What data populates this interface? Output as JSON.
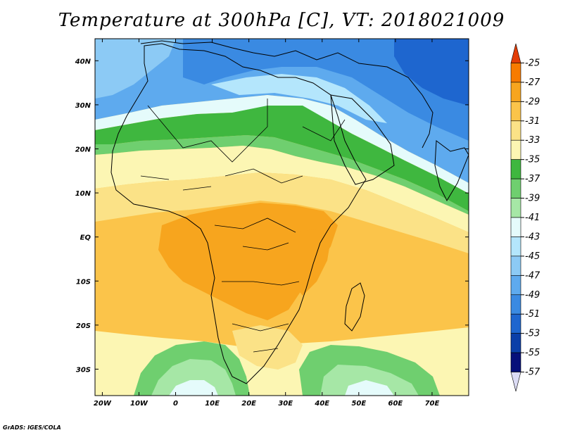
{
  "title": "Temperature at 300hPa [C], VT: 2018021009",
  "credit": "GrADS: IGES/COLA",
  "map": {
    "lon_range": [
      -22,
      80
    ],
    "lat_range": [
      -36,
      45
    ],
    "lon_ticks": [
      {
        "value": -20,
        "label": "20W"
      },
      {
        "value": -10,
        "label": "10W"
      },
      {
        "value": 0,
        "label": "0"
      },
      {
        "value": 10,
        "label": "10E"
      },
      {
        "value": 20,
        "label": "20E"
      },
      {
        "value": 30,
        "label": "30E"
      },
      {
        "value": 40,
        "label": "40E"
      },
      {
        "value": 50,
        "label": "50E"
      },
      {
        "value": 60,
        "label": "60E"
      },
      {
        "value": 70,
        "label": "70E"
      }
    ],
    "lat_ticks": [
      {
        "value": 40,
        "label": "40N"
      },
      {
        "value": 30,
        "label": "30N"
      },
      {
        "value": 20,
        "label": "20N"
      },
      {
        "value": 10,
        "label": "10N"
      },
      {
        "value": 0,
        "label": "EQ"
      },
      {
        "value": -10,
        "label": "10S"
      },
      {
        "value": -20,
        "label": "20S"
      },
      {
        "value": -30,
        "label": "30S"
      }
    ]
  },
  "colorbar": {
    "labels": [
      "-25",
      "-27",
      "-29",
      "-31",
      "-33",
      "-35",
      "-37",
      "-39",
      "-41",
      "-43",
      "-45",
      "-47",
      "-49",
      "-51",
      "-53",
      "-55",
      "-57"
    ],
    "colors": [
      "#e33d06",
      "#f77b00",
      "#f7a51e",
      "#fbc44a",
      "#fbe287",
      "#fcf6b3",
      "#3fb73f",
      "#6fcf6f",
      "#a6e7a6",
      "#e5fbfb",
      "#b4e6fc",
      "#8ccaf5",
      "#5eaaee",
      "#3a8ae2",
      "#1e66cf",
      "#0b3fa8",
      "#07107a",
      "#dcdcf5"
    ]
  },
  "field": {
    "colors": {
      "deep_blue": "#1e66cf",
      "blue": "#3a8ae2",
      "mid_blue": "#5eaaee",
      "light_blue": "#8ccaf5",
      "pale_blue": "#b4e6fc",
      "cyan_white": "#e5fbfb",
      "light_green": "#a6e7a6",
      "mid_green": "#6fcf6f",
      "green": "#3fb73f",
      "cream": "#fcf6b3",
      "light_yellow": "#fbe287",
      "yellow": "#fbc44a",
      "orange": "#f7a51e"
    }
  }
}
